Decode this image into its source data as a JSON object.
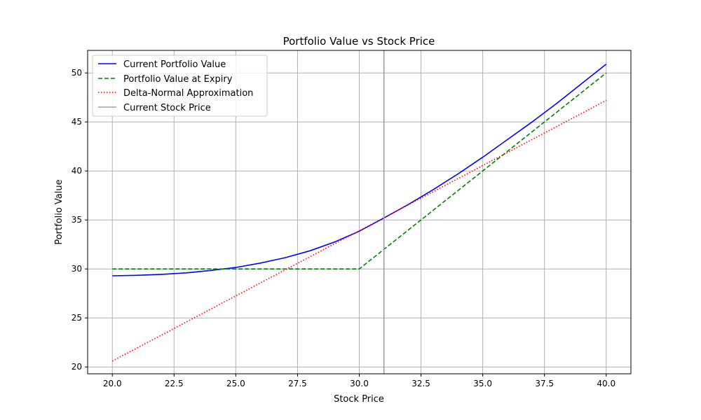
{
  "chart_data": {
    "type": "line",
    "title": "Portfolio Value vs Stock Price",
    "xlabel": "Stock Price",
    "ylabel": "Portfolio Value",
    "xlim": [
      19.0,
      41.0
    ],
    "ylim": [
      19.3,
      52.3
    ],
    "xticks": [
      20.0,
      22.5,
      25.0,
      27.5,
      30.0,
      32.5,
      35.0,
      37.5,
      40.0
    ],
    "xtick_labels": [
      "20.0",
      "22.5",
      "25.0",
      "27.5",
      "30.0",
      "32.5",
      "35.0",
      "37.5",
      "40.0"
    ],
    "yticks": [
      20,
      25,
      30,
      35,
      40,
      45,
      50
    ],
    "ytick_labels": [
      "20",
      "25",
      "30",
      "35",
      "40",
      "45",
      "50"
    ],
    "grid": true,
    "legend_position": "top-left",
    "vline": {
      "name": "Current Stock Price",
      "x": 31.0,
      "color": "#a0a0a0"
    },
    "series": [
      {
        "name": "Current Portfolio Value",
        "color": "#0000ff",
        "style": "solid",
        "x": [
          20,
          21,
          22,
          23,
          24,
          25,
          26,
          27,
          28,
          29,
          30,
          31,
          32,
          33,
          34,
          35,
          36,
          37,
          38,
          39,
          40
        ],
        "y": [
          29.3,
          29.35,
          29.45,
          29.6,
          29.85,
          30.15,
          30.6,
          31.15,
          31.85,
          32.75,
          33.85,
          35.2,
          36.6,
          38.1,
          39.7,
          41.4,
          43.2,
          45.0,
          46.9,
          48.9,
          50.9
        ]
      },
      {
        "name": "Portfolio Value at Expiry",
        "color": "#008000",
        "style": "dashed",
        "x": [
          20,
          30,
          40
        ],
        "y": [
          30,
          30,
          50
        ]
      },
      {
        "name": "Delta-Normal Approximation",
        "color": "#ff0000",
        "style": "dotted",
        "x": [
          20,
          40
        ],
        "y": [
          20.6,
          47.2
        ]
      }
    ]
  }
}
